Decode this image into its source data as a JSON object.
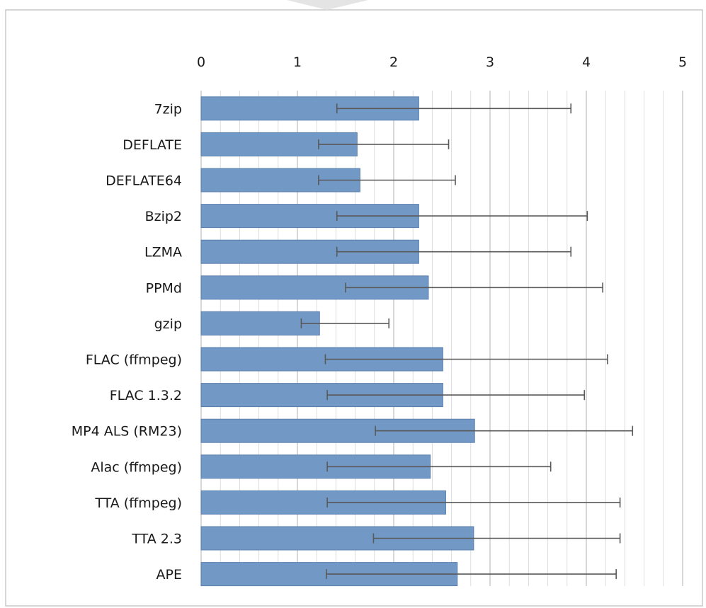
{
  "chart_data": {
    "type": "bar",
    "orientation": "horizontal",
    "categories": [
      "7zip",
      "DEFLATE",
      "DEFLATE64",
      "Bzip2",
      "LZMA",
      "PPMd",
      "gzip",
      "FLAC (ffmpeg)",
      "FLAC 1.3.2",
      "MP4 ALS (RM23)",
      "Alac (ffmpeg)",
      "TTA (ffmpeg)",
      "TTA 2.3",
      "APE"
    ],
    "values": [
      2.26,
      1.62,
      1.65,
      2.26,
      2.26,
      2.36,
      1.23,
      2.51,
      2.51,
      2.84,
      2.38,
      2.54,
      2.83,
      2.66
    ],
    "error_low": [
      1.41,
      1.22,
      1.22,
      1.41,
      1.41,
      1.5,
      1.04,
      1.29,
      1.31,
      1.81,
      1.31,
      1.31,
      1.79,
      1.3
    ],
    "error_high": [
      3.84,
      2.57,
      2.64,
      4.01,
      3.84,
      4.17,
      1.95,
      4.22,
      3.98,
      4.48,
      3.63,
      4.35,
      4.35,
      4.31
    ],
    "xlim": [
      0,
      5
    ],
    "x_ticks": [
      "0",
      "1",
      "2",
      "3",
      "4",
      "5"
    ],
    "x_axis_position": "top",
    "grid": "vertical major and minor",
    "bar_color": "#7299c6",
    "bar_edge_color": "#5a7fae",
    "error_bar_color": "#595959",
    "grid_color": "#d9d9d9"
  }
}
